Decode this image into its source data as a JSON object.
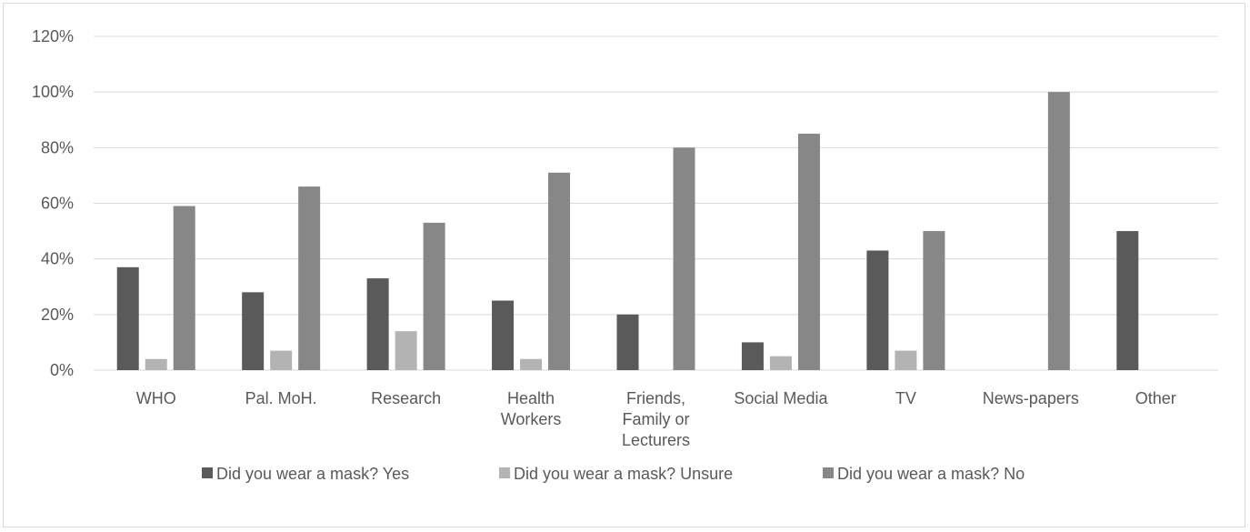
{
  "chart_data": {
    "type": "bar",
    "title": "",
    "xlabel": "",
    "ylabel": "",
    "ylim": [
      0,
      1.2
    ],
    "y_ticks": [
      {
        "value": 0,
        "label": "0%"
      },
      {
        "value": 0.2,
        "label": "20%"
      },
      {
        "value": 0.4,
        "label": "40%"
      },
      {
        "value": 0.6,
        "label": "60%"
      },
      {
        "value": 0.8,
        "label": "80%"
      },
      {
        "value": 1.0,
        "label": "100%"
      },
      {
        "value": 1.2,
        "label": "120%"
      }
    ],
    "grid": true,
    "legend_position": "bottom",
    "categories": [
      [
        "WHO"
      ],
      [
        "Pal. MoH."
      ],
      [
        "Research"
      ],
      [
        "Health",
        "Workers"
      ],
      [
        "Friends,",
        "Family or",
        "Lecturers"
      ],
      [
        "Social Media"
      ],
      [
        "TV"
      ],
      [
        "News-papers"
      ],
      [
        "Other"
      ]
    ],
    "series": [
      {
        "name": "Did you wear a mask? Yes",
        "color": "#5a5a5a",
        "values": [
          0.37,
          0.28,
          0.33,
          0.25,
          0.2,
          0.1,
          0.43,
          0,
          0.5
        ]
      },
      {
        "name": "Did you wear a mask? Unsure",
        "color": "#b3b3b3",
        "values": [
          0.04,
          0.07,
          0.14,
          0.04,
          0,
          0.05,
          0.07,
          0,
          0
        ]
      },
      {
        "name": "Did you wear a mask? No",
        "color": "#878787",
        "values": [
          0.59,
          0.66,
          0.53,
          0.71,
          0.8,
          0.85,
          0.5,
          1.0,
          0
        ]
      }
    ],
    "colors": {
      "gridline": "#d9d9d9",
      "axis_text": "#595959",
      "frame": "#d9d9d9"
    }
  }
}
